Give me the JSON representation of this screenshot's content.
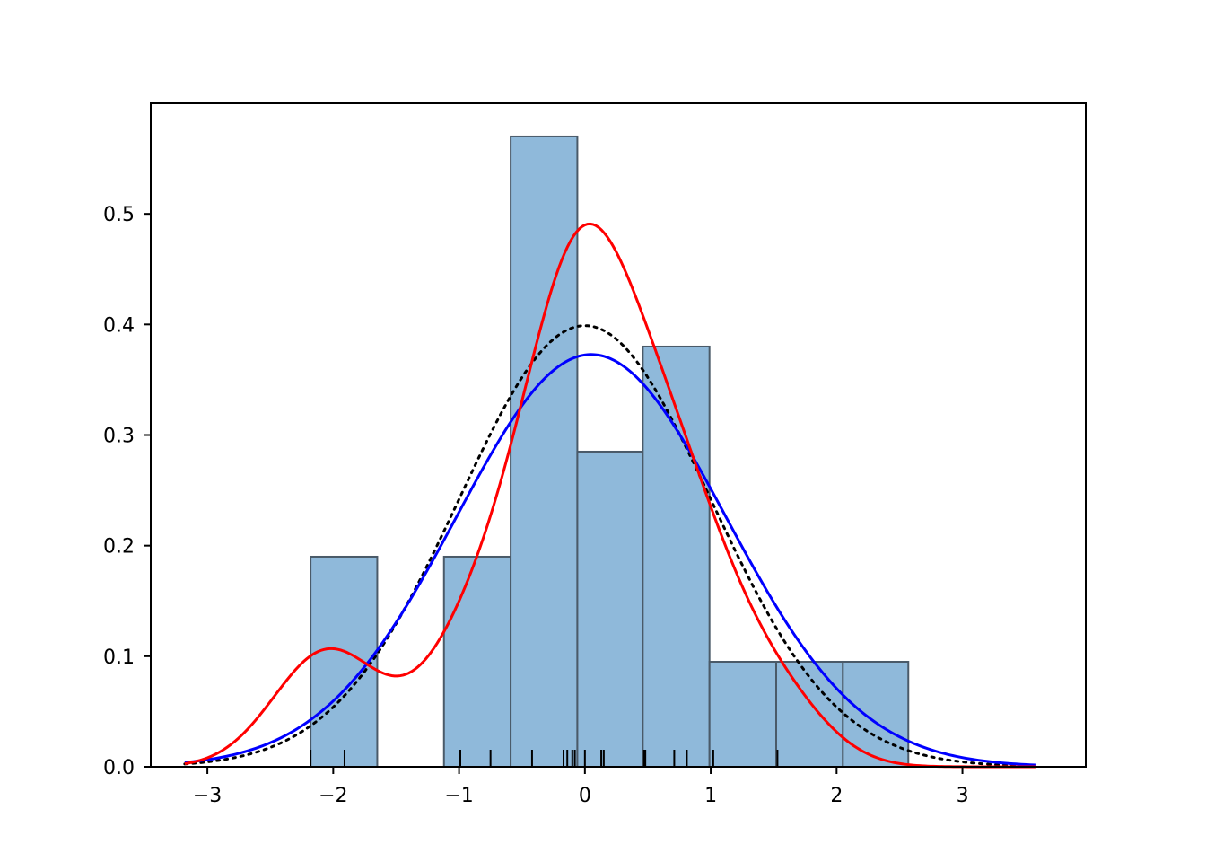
{
  "chart_data": {
    "type": "bar",
    "title": "",
    "xlabel": "",
    "ylabel": "",
    "xlim": [
      -3.45,
      3.98
    ],
    "ylim": [
      0.0,
      0.6
    ],
    "grid": false,
    "legend": "none",
    "x_ticks": [
      {
        "value": -3,
        "label": "−3"
      },
      {
        "value": -2,
        "label": "−2"
      },
      {
        "value": -1,
        "label": "−1"
      },
      {
        "value": 0,
        "label": "0"
      },
      {
        "value": 1,
        "label": "1"
      },
      {
        "value": 2,
        "label": "2"
      },
      {
        "value": 3,
        "label": "3"
      }
    ],
    "y_ticks": [
      {
        "value": 0.0,
        "label": "0.0"
      },
      {
        "value": 0.1,
        "label": "0.1"
      },
      {
        "value": 0.2,
        "label": "0.2"
      },
      {
        "value": 0.3,
        "label": "0.3"
      },
      {
        "value": 0.4,
        "label": "0.4"
      },
      {
        "value": 0.5,
        "label": "0.5"
      }
    ],
    "histogram": {
      "bin_edges": [
        -2.18,
        -1.65,
        -1.12,
        -0.59,
        -0.06,
        0.46,
        0.99,
        1.52,
        2.05,
        2.57
      ],
      "density": [
        0.19,
        0.0,
        0.19,
        0.57,
        0.285,
        0.38,
        0.095,
        0.095,
        0.095
      ],
      "fill_color": "#8fb9da",
      "edge_color": "#4a5a68"
    },
    "rug": {
      "values": [
        -2.18,
        -1.91,
        -0.99,
        -0.75,
        -0.42,
        -0.17,
        -0.14,
        -0.1,
        -0.08,
        0.0,
        0.13,
        0.15,
        0.47,
        0.48,
        0.71,
        0.81,
        1.02,
        1.53
      ],
      "color": "#000000"
    },
    "series": [
      {
        "kind": "normal-pdf",
        "mean": 0.0,
        "std": 1.0,
        "color": "#000000",
        "dash": "dotted",
        "x_range": [
          -3.18,
          3.58
        ]
      },
      {
        "kind": "normal-fit",
        "mean": 0.05,
        "std": 1.07,
        "color": "#0000ff",
        "dash": "solid",
        "x_range": [
          -3.18,
          3.58
        ]
      },
      {
        "kind": "kde",
        "bandwidth": 0.4,
        "color": "#ff0000",
        "dash": "solid",
        "x_range": [
          -3.18,
          3.58
        ]
      }
    ]
  }
}
